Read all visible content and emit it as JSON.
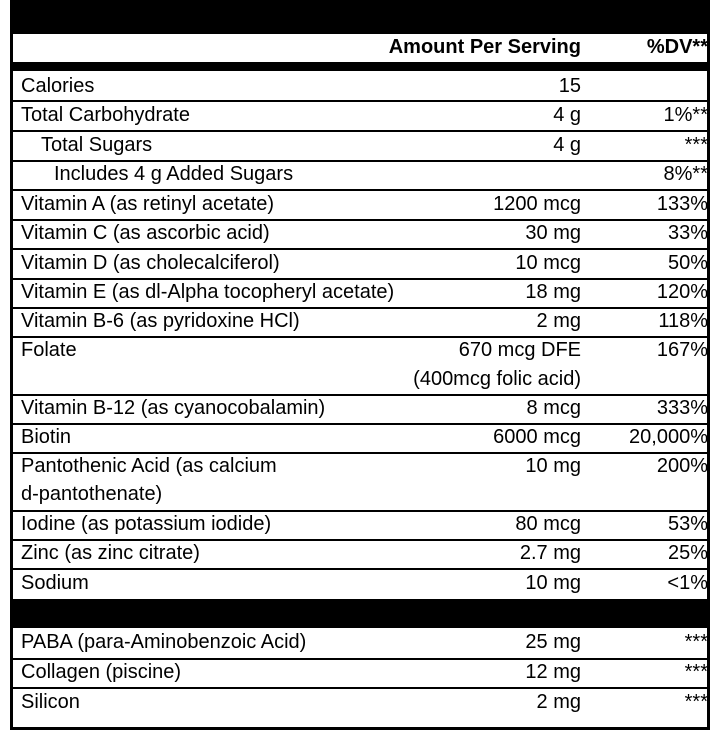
{
  "header": {
    "amount_label": "Amount Per Serving",
    "dv_label": "%DV**"
  },
  "rows": [
    {
      "name": "Calories",
      "amount": "15",
      "dv": ""
    },
    {
      "name": "Total Carbohydrate",
      "amount": "4 g",
      "dv": "1%**"
    },
    {
      "name": "Total Sugars",
      "amount": "4 g",
      "dv": "***"
    },
    {
      "name": "Includes 4 g Added Sugars",
      "amount": "",
      "dv": "8%**"
    },
    {
      "name": "Vitamin A (as retinyl acetate)",
      "amount": "1200 mcg",
      "dv": "133%"
    },
    {
      "name": "Vitamin C (as ascorbic acid)",
      "amount": "30 mg",
      "dv": "33%"
    },
    {
      "name": "Vitamin D (as cholecalciferol)",
      "amount": "10 mcg",
      "dv": "50%"
    },
    {
      "name": "Vitamin E (as dl-Alpha tocopheryl acetate)",
      "amount": "18 mg",
      "dv": "120%"
    },
    {
      "name": "Vitamin B-6 (as pyridoxine HCl)",
      "amount": "2 mg",
      "dv": "118%"
    },
    {
      "name": "Folate",
      "amount": "670 mcg DFE",
      "amount_line2": "(400mcg folic acid)",
      "dv": "167%"
    },
    {
      "name": "Vitamin B-12 (as cyanocobalamin)",
      "amount": "8 mcg",
      "dv": "333%"
    },
    {
      "name": "Biotin",
      "amount": "6000 mcg",
      "dv": "20,000%"
    },
    {
      "name": "Pantothenic Acid (as calcium",
      "name_line2": "d-pantothenate)",
      "amount": "10 mg",
      "dv": "200%"
    },
    {
      "name": "Iodine (as potassium iodide)",
      "amount": "80 mcg",
      "dv": "53%"
    },
    {
      "name": "Zinc (as zinc citrate)",
      "amount": "2.7 mg",
      "dv": "25%"
    },
    {
      "name": "Sodium",
      "amount": "10 mg",
      "dv": "<1%"
    }
  ],
  "other_rows": [
    {
      "name": "PABA (para-Aminobenzoic Acid)",
      "amount": "25 mg",
      "dv": "***"
    },
    {
      "name": "Collagen (piscine)",
      "amount": "12 mg",
      "dv": "***"
    },
    {
      "name": "Silicon",
      "amount": "2 mg",
      "dv": "***"
    }
  ]
}
